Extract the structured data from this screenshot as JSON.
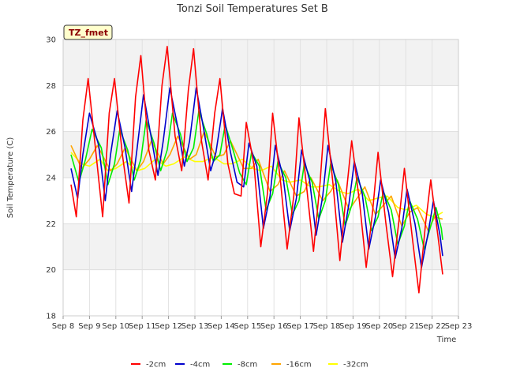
{
  "chart_data": {
    "type": "line",
    "title": "Tonzi Soil Temperatures Set B",
    "xlabel": "Time",
    "ylabel": "Soil Temperature (C)",
    "badge": "TZ_fmet",
    "ylim": [
      18,
      30
    ],
    "yticks": [
      18,
      20,
      22,
      24,
      26,
      28,
      30
    ],
    "xlim": [
      8,
      23
    ],
    "xticks": [
      {
        "value": 8,
        "label": "Sep 8"
      },
      {
        "value": 9,
        "label": "Sep 9"
      },
      {
        "value": 10,
        "label": "Sep 10"
      },
      {
        "value": 11,
        "label": "Sep 11"
      },
      {
        "value": 12,
        "label": "Sep 12"
      },
      {
        "value": 13,
        "label": "Sep 13"
      },
      {
        "value": 14,
        "label": "Sep 14"
      },
      {
        "value": 15,
        "label": "Sep 15"
      },
      {
        "value": 16,
        "label": "Sep 16"
      },
      {
        "value": 17,
        "label": "Sep 17"
      },
      {
        "value": 18,
        "label": "Sep 18"
      },
      {
        "value": 19,
        "label": "Sep 19"
      },
      {
        "value": 20,
        "label": "Sep 20"
      },
      {
        "value": 21,
        "label": "Sep 21"
      },
      {
        "value": 22,
        "label": "Sep 22"
      },
      {
        "value": 23,
        "label": "Sep 23"
      }
    ],
    "grid": true,
    "legend_position": "bottom",
    "series": [
      {
        "name": "-2cm",
        "color": "#ff0000",
        "x": [
          8.3,
          8.5,
          8.75,
          8.95,
          9.25,
          9.5,
          9.75,
          9.95,
          10.25,
          10.5,
          10.75,
          10.95,
          11.25,
          11.5,
          11.75,
          11.95,
          12.25,
          12.5,
          12.75,
          12.95,
          13.25,
          13.5,
          13.75,
          13.95,
          14.25,
          14.5,
          14.75,
          14.95,
          15.25,
          15.5,
          15.75,
          15.95,
          16.25,
          16.5,
          16.75,
          16.95,
          17.25,
          17.5,
          17.75,
          17.95,
          18.25,
          18.5,
          18.75,
          18.95,
          19.25,
          19.5,
          19.75,
          19.95,
          20.25,
          20.5,
          20.75,
          20.95,
          21.25,
          21.5,
          21.75,
          21.95,
          22.25,
          22.4
        ],
        "y": [
          23.7,
          22.3,
          26.5,
          28.3,
          25.0,
          22.3,
          26.8,
          28.3,
          25.0,
          22.9,
          27.5,
          29.3,
          25.2,
          23.9,
          28.0,
          29.7,
          25.8,
          24.3,
          27.8,
          29.6,
          25.6,
          23.9,
          26.8,
          28.3,
          24.6,
          23.3,
          23.2,
          26.4,
          24.5,
          21.0,
          23.3,
          26.8,
          23.8,
          20.9,
          23.2,
          26.6,
          23.5,
          20.8,
          23.8,
          27.0,
          23.6,
          20.4,
          23.4,
          25.6,
          22.9,
          20.1,
          22.6,
          25.1,
          22.0,
          19.7,
          22.2,
          24.4,
          21.4,
          19.0,
          22.0,
          23.9,
          21.2,
          19.8
        ]
      },
      {
        "name": "-4cm",
        "color": "#0000cc",
        "x": [
          8.3,
          8.55,
          8.75,
          9.0,
          9.35,
          9.6,
          9.8,
          10.05,
          10.35,
          10.6,
          10.8,
          11.05,
          11.35,
          11.6,
          11.8,
          12.05,
          12.35,
          12.6,
          12.8,
          13.05,
          13.35,
          13.6,
          13.8,
          14.05,
          14.35,
          14.6,
          14.85,
          15.05,
          15.35,
          15.6,
          15.85,
          16.05,
          16.35,
          16.6,
          16.85,
          17.05,
          17.35,
          17.6,
          17.85,
          18.05,
          18.35,
          18.6,
          18.85,
          19.05,
          19.35,
          19.6,
          19.85,
          20.05,
          20.35,
          20.6,
          20.85,
          21.05,
          21.35,
          21.6,
          21.85,
          22.05,
          22.3,
          22.4
        ],
        "y": [
          24.4,
          23.1,
          25.0,
          26.8,
          25.4,
          23.0,
          25.0,
          26.9,
          25.3,
          23.4,
          25.2,
          27.6,
          25.7,
          24.1,
          25.6,
          27.9,
          26.2,
          24.5,
          25.6,
          27.9,
          26.0,
          24.3,
          25.1,
          27.0,
          25.1,
          23.8,
          23.6,
          25.5,
          24.5,
          21.8,
          23.2,
          25.4,
          24.0,
          21.7,
          23.1,
          25.2,
          23.9,
          21.5,
          23.2,
          25.4,
          23.8,
          21.2,
          22.9,
          24.7,
          23.3,
          20.9,
          22.3,
          23.9,
          22.5,
          20.5,
          21.8,
          23.5,
          22.0,
          20.1,
          21.6,
          23.0,
          21.5,
          20.6
        ]
      },
      {
        "name": "-8cm",
        "color": "#00ee00",
        "x": [
          8.3,
          8.6,
          8.85,
          9.1,
          9.45,
          9.7,
          9.95,
          10.15,
          10.45,
          10.7,
          10.95,
          11.15,
          11.45,
          11.7,
          11.95,
          12.15,
          12.45,
          12.7,
          12.95,
          13.15,
          13.45,
          13.7,
          13.95,
          14.15,
          14.45,
          14.7,
          14.95,
          15.15,
          15.45,
          15.7,
          15.95,
          16.15,
          16.45,
          16.7,
          16.95,
          17.15,
          17.45,
          17.7,
          17.95,
          18.15,
          18.45,
          18.7,
          18.95,
          19.15,
          19.45,
          19.7,
          19.95,
          20.15,
          20.45,
          20.7,
          20.95,
          21.15,
          21.45,
          21.7,
          21.95,
          22.15,
          22.35,
          22.4
        ],
        "y": [
          25.0,
          23.8,
          24.8,
          26.1,
          25.3,
          23.7,
          24.6,
          26.1,
          25.2,
          23.9,
          24.8,
          26.5,
          25.5,
          24.3,
          25.2,
          26.8,
          25.9,
          24.7,
          25.3,
          26.9,
          25.9,
          24.7,
          25.0,
          26.3,
          25.2,
          24.2,
          23.7,
          25.1,
          24.5,
          22.6,
          23.3,
          24.7,
          24.0,
          22.4,
          23.0,
          24.6,
          23.8,
          22.2,
          23.0,
          24.6,
          23.7,
          21.9,
          22.8,
          24.0,
          23.2,
          21.7,
          22.3,
          23.4,
          22.6,
          21.1,
          21.9,
          23.0,
          22.2,
          20.9,
          21.9,
          22.7,
          21.8,
          21.3
        ]
      },
      {
        "name": "-16cm",
        "color": "#ffa500",
        "x": [
          8.3,
          8.7,
          9.0,
          9.3,
          9.8,
          10.05,
          10.35,
          10.8,
          11.05,
          11.35,
          11.8,
          12.05,
          12.35,
          12.8,
          13.05,
          13.35,
          13.8,
          14.1,
          14.35,
          14.85,
          15.15,
          15.4,
          15.85,
          16.15,
          16.4,
          16.85,
          17.15,
          17.4,
          17.85,
          18.15,
          18.4,
          18.85,
          19.15,
          19.45,
          19.85,
          20.15,
          20.45,
          20.85,
          21.15,
          21.45,
          21.85,
          22.1,
          22.4
        ],
        "y": [
          25.4,
          24.4,
          24.8,
          25.4,
          24.3,
          24.6,
          25.3,
          24.3,
          24.7,
          25.6,
          24.6,
          25.0,
          25.8,
          24.8,
          25.0,
          26.0,
          24.9,
          25.0,
          25.6,
          24.4,
          24.4,
          24.8,
          23.4,
          23.7,
          24.3,
          23.2,
          23.4,
          24.0,
          23.0,
          23.4,
          23.9,
          22.6,
          23.1,
          23.6,
          22.4,
          22.8,
          23.2,
          21.9,
          22.5,
          22.7,
          21.7,
          22.3,
          22.2
        ]
      },
      {
        "name": "-32cm",
        "color": "#ffff00",
        "x": [
          8.3,
          8.7,
          9.0,
          9.4,
          9.7,
          10.0,
          10.4,
          10.8,
          11.1,
          11.5,
          11.9,
          12.2,
          12.6,
          13.0,
          13.3,
          13.7,
          14.1,
          14.4,
          14.8,
          15.2,
          15.5,
          15.9,
          16.3,
          16.6,
          17.0,
          17.4,
          17.7,
          18.1,
          18.5,
          18.8,
          19.2,
          19.6,
          19.9,
          20.3,
          20.7,
          21.0,
          21.4,
          21.8,
          22.1,
          22.4
        ],
        "y": [
          25.1,
          24.6,
          24.5,
          24.8,
          24.3,
          24.4,
          24.7,
          24.3,
          24.4,
          24.8,
          24.5,
          24.6,
          24.9,
          24.7,
          24.7,
          24.9,
          24.6,
          24.6,
          24.8,
          24.4,
          24.3,
          24.5,
          23.9,
          23.8,
          23.9,
          23.6,
          23.6,
          23.7,
          23.4,
          23.3,
          23.5,
          23.0,
          23.1,
          23.2,
          22.7,
          22.6,
          22.8,
          22.4,
          22.3,
          22.5
        ]
      }
    ]
  }
}
